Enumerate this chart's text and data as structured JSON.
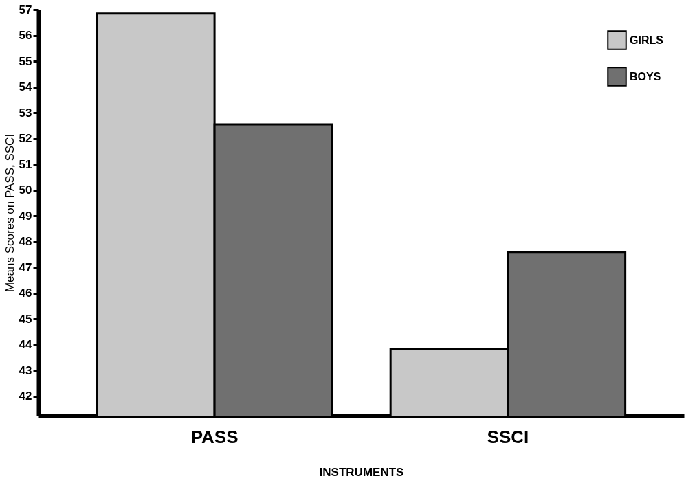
{
  "chart_data": {
    "type": "bar",
    "xlabel": "INSTRUMENTS",
    "ylabel": "Means Scores on PASS, SSCI",
    "categories": [
      "PASS",
      "SSCI"
    ],
    "series": [
      {
        "name": "GIRLS",
        "color": "#c8c8c8",
        "values": [
          56.85,
          43.85
        ]
      },
      {
        "name": "BOYS",
        "color": "#707070",
        "values": [
          52.55,
          47.6
        ]
      }
    ],
    "ylim": [
      41.25,
      57
    ],
    "yticks": [
      42,
      43,
      44,
      45,
      46,
      47,
      48,
      49,
      50,
      51,
      52,
      53,
      54,
      55,
      56,
      57
    ],
    "grid": false,
    "legend": "top right"
  }
}
